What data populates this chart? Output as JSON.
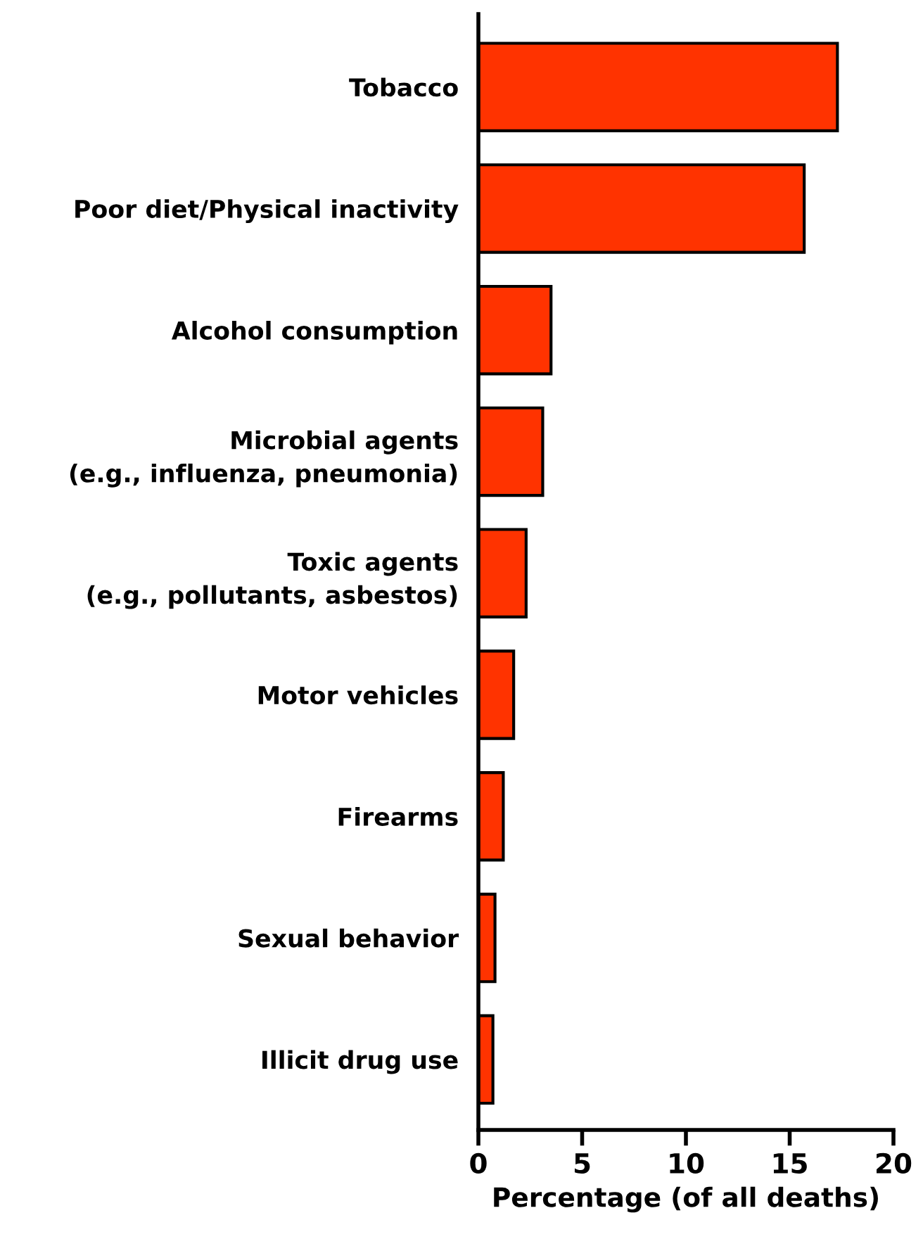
{
  "chart_data": {
    "type": "bar",
    "orientation": "horizontal",
    "xlabel": "Percentage (of all deaths)",
    "categories": [
      "Tobacco",
      "Poor diet/Physical inactivity",
      "Alcohol consumption",
      "Microbial agents\n(e.g., influenza, pneumonia)",
      "Toxic agents\n(e.g., pollutants, asbestos)",
      "Motor vehicles",
      "Firearms",
      "Sexual behavior",
      "Illicit drug use"
    ],
    "values": [
      17.3,
      15.7,
      3.5,
      3.1,
      2.3,
      1.7,
      1.2,
      0.8,
      0.7
    ],
    "color": "#ff3300",
    "xlim": [
      0,
      20
    ],
    "xticks": [
      0,
      5,
      10,
      15,
      20
    ],
    "grid": false,
    "legend": false
  }
}
